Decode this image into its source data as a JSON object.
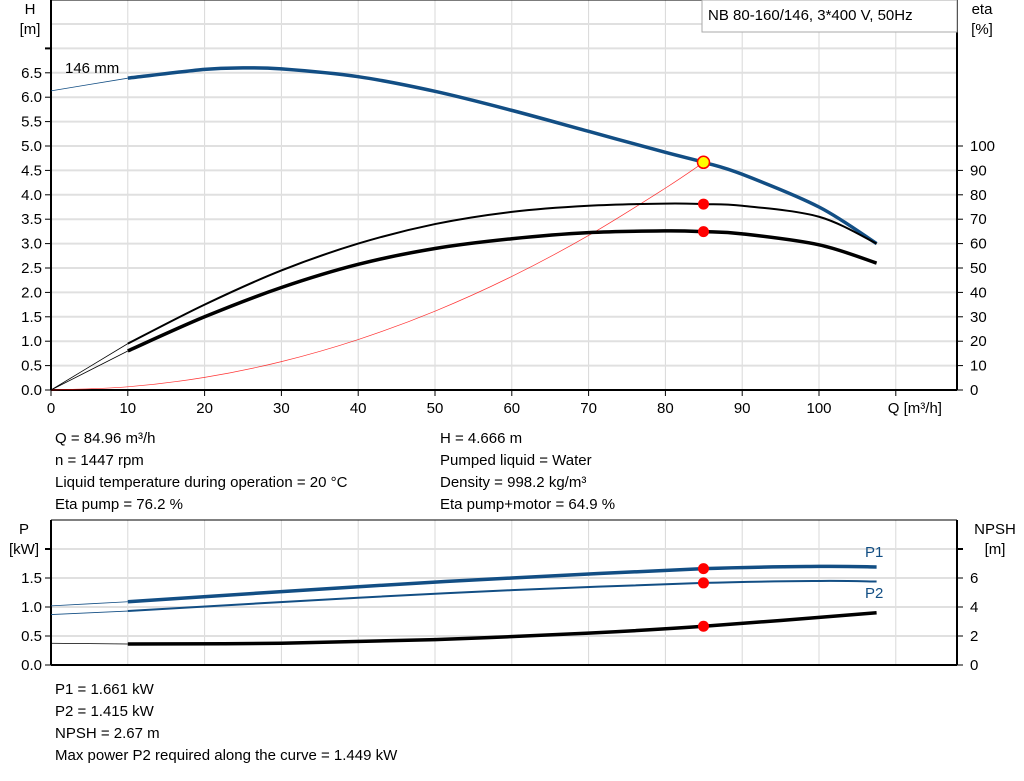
{
  "chart_data": [
    {
      "type": "line",
      "title": "NB 80-160/146, 3*400 V, 50Hz",
      "xlabel": "Q [m³/h]",
      "ylabel_left": "H\n[m]",
      "ylabel_right": "eta\n[%]",
      "xlim": [
        0,
        118
      ],
      "ylim_left": [
        0,
        8
      ],
      "ylim_right": [
        0,
        160
      ],
      "grid": true,
      "x_ticks": [
        0,
        10,
        20,
        30,
        40,
        50,
        60,
        70,
        80,
        90,
        100
      ],
      "y_ticks_left": [
        "0.0",
        "0.5",
        "1.0",
        "1.5",
        "2.0",
        "2.5",
        "3.0",
        "3.5",
        "4.0",
        "4.5",
        "5.0",
        "5.5",
        "6.0",
        "6.5"
      ],
      "y_ticks_right": [
        0,
        10,
        20,
        30,
        40,
        50,
        60,
        70,
        80,
        90,
        100
      ],
      "annotation": "146 mm",
      "series": [
        {
          "key": "H",
          "axis": "left",
          "color": "#124e84",
          "x": [
            0,
            10,
            20,
            25,
            30,
            40,
            50,
            60,
            70,
            80,
            85,
            90,
            100,
            107.5
          ],
          "y": [
            6.13,
            6.39,
            6.57,
            6.6,
            6.58,
            6.42,
            6.12,
            5.73,
            5.3,
            4.87,
            4.666,
            4.42,
            3.75,
            3.0
          ]
        },
        {
          "key": "eta_pump",
          "axis": "right",
          "color": "#000000",
          "x": [
            0,
            10,
            20,
            30,
            40,
            50,
            60,
            70,
            80,
            85,
            90,
            100,
            107.5
          ],
          "y": [
            0,
            19,
            35,
            49,
            60,
            68,
            73,
            75.5,
            76.4,
            76.2,
            75.5,
            71,
            60
          ]
        },
        {
          "key": "eta_total",
          "axis": "right",
          "color": "#000000",
          "x": [
            0,
            10,
            20,
            30,
            40,
            50,
            60,
            70,
            80,
            85,
            90,
            100,
            107.5
          ],
          "y": [
            0,
            16,
            30,
            42,
            51.5,
            58,
            62,
            64.5,
            65.2,
            64.9,
            64,
            59.5,
            52
          ]
        },
        {
          "key": "system",
          "axis": "left",
          "color": "#ff0000",
          "x": [
            0,
            10,
            20,
            30,
            40,
            50,
            60,
            70,
            80,
            85
          ],
          "y": [
            0,
            0.065,
            0.259,
            0.582,
            1.034,
            1.616,
            2.327,
            3.167,
            4.137,
            4.666
          ]
        }
      ],
      "duty_point": {
        "Q": 84.96,
        "H": 4.666,
        "eta_pump": 76.2,
        "eta_total": 64.9
      }
    },
    {
      "type": "line",
      "ylabel_left": "P\n[kW]",
      "ylabel_right": "NPSH\n[m]",
      "xlim": [
        0,
        118
      ],
      "ylim_left": [
        0,
        2.5
      ],
      "ylim_right": [
        0,
        10
      ],
      "grid": true,
      "y_ticks_left": [
        "0.0",
        "0.5",
        "1.0",
        "1.5"
      ],
      "y_ticks_right": [
        0,
        2,
        4,
        6
      ],
      "series": [
        {
          "name": "P1",
          "axis": "left",
          "color": "#124e84",
          "x": [
            0,
            10,
            40,
            60,
            85,
            100,
            107.5
          ],
          "y": [
            1.02,
            1.09,
            1.35,
            1.5,
            1.661,
            1.7,
            1.69
          ]
        },
        {
          "name": "P2",
          "axis": "left",
          "color": "#124e84",
          "x": [
            0,
            10,
            40,
            60,
            85,
            100,
            107.5
          ],
          "y": [
            0.87,
            0.93,
            1.16,
            1.29,
            1.415,
            1.449,
            1.44
          ]
        },
        {
          "key": "NPSH",
          "axis": "right",
          "color": "#000000",
          "x": [
            0,
            10,
            30,
            50,
            70,
            85,
            107.5
          ],
          "y": [
            1.5,
            1.45,
            1.5,
            1.75,
            2.2,
            2.67,
            3.6
          ]
        }
      ],
      "duty_point": {
        "Q": 84.96,
        "P1": 1.661,
        "P2": 1.415,
        "NPSH": 2.67
      }
    }
  ],
  "info_top": {
    "col1": [
      "Q = 84.96 m³/h",
      "n = 1447 rpm",
      "Liquid temperature during operation = 20 °C",
      "Eta pump = 76.2 %"
    ],
    "col2": [
      "H = 4.666 m",
      "Pumped liquid = Water",
      "Density = 998.2 kg/m³",
      "Eta pump+motor = 64.9 %"
    ]
  },
  "info_bottom": [
    "P1 = 1.661 kW",
    "P2 = 1.415 kW",
    "NPSH = 2.67 m",
    "Max power P2 required along the curve = 1.449 kW"
  ]
}
